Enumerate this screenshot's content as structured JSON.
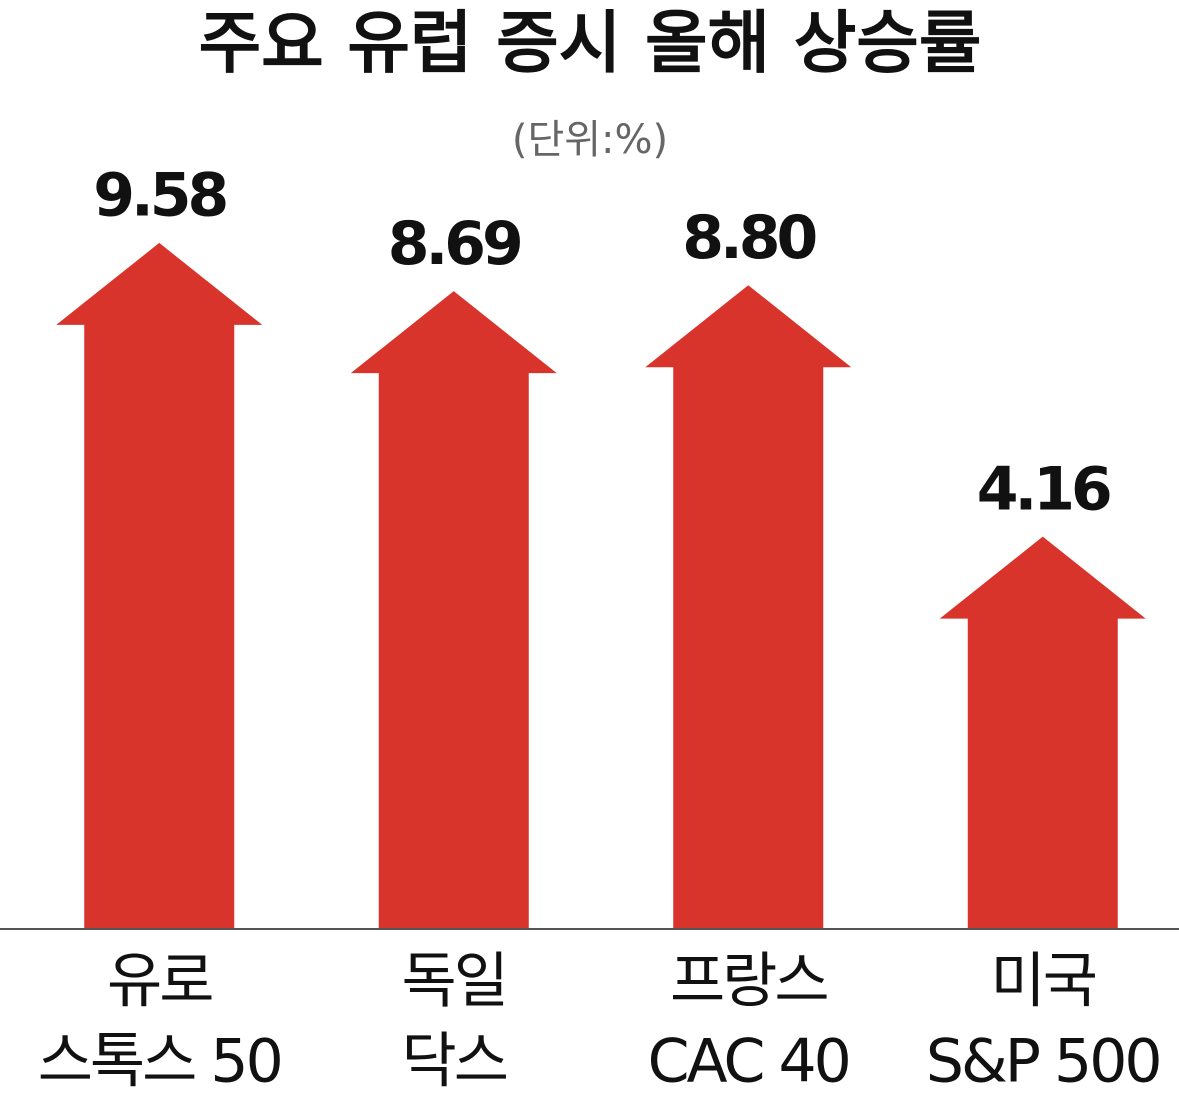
{
  "chart_data": {
    "type": "arrow-bar",
    "title": "주요 유럽 증시 올해 상승률",
    "subtitle": "(단위:%)",
    "categories": [
      [
        "유로",
        "스톡스 50"
      ],
      [
        "독일",
        "닥스"
      ],
      [
        "프랑스",
        "CAC 40"
      ],
      [
        "미국",
        "S&P 500"
      ]
    ],
    "values": [
      9.58,
      8.69,
      8.8,
      4.16
    ],
    "value_labels": [
      "9.58",
      "8.69",
      "8.80",
      "4.16"
    ],
    "color": "#d9342b",
    "ylim": [
      -3.06,
      11.11
    ]
  }
}
